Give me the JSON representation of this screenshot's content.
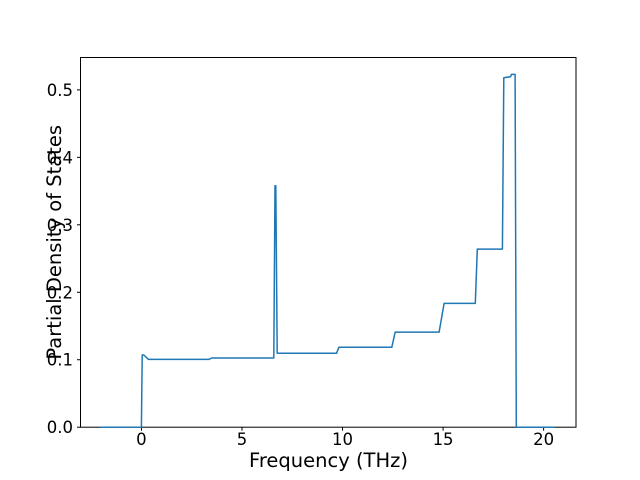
{
  "chart_data": {
    "type": "line",
    "title": "",
    "xlabel": "Frequency (THz)",
    "ylabel": "Partial Density of States",
    "xlim": [
      -3.03,
      21.61
    ],
    "ylim": [
      0.0,
      0.548
    ],
    "xticks": [
      0,
      5,
      10,
      15,
      20
    ],
    "xtick_labels": [
      "0",
      "5",
      "10",
      "15",
      "20"
    ],
    "yticks": [
      0.0,
      0.1,
      0.2,
      0.3,
      0.4,
      0.5
    ],
    "ytick_labels": [
      "0.0",
      "0.1",
      "0.2",
      "0.3",
      "0.4",
      "0.5"
    ],
    "grid": false,
    "legend": "none",
    "background": "#ffffff",
    "line_color": "#1f77b4",
    "line_width": 1.5,
    "series": [
      {
        "name": "partial-dos",
        "points": [
          [
            -2.08,
            0.0
          ],
          [
            0.0,
            0.0
          ],
          [
            0.04,
            0.107
          ],
          [
            0.12,
            0.107
          ],
          [
            0.35,
            0.1005
          ],
          [
            3.35,
            0.1005
          ],
          [
            3.5,
            0.1025
          ],
          [
            6.58,
            0.1025
          ],
          [
            6.64,
            0.358
          ],
          [
            6.68,
            0.358
          ],
          [
            6.75,
            0.1095
          ],
          [
            9.7,
            0.1095
          ],
          [
            9.82,
            0.1185
          ],
          [
            12.45,
            0.1185
          ],
          [
            12.62,
            0.141
          ],
          [
            14.8,
            0.141
          ],
          [
            15.05,
            0.1835
          ],
          [
            16.6,
            0.1835
          ],
          [
            16.7,
            0.264
          ],
          [
            17.95,
            0.264
          ],
          [
            18.02,
            0.518
          ],
          [
            18.36,
            0.5195
          ],
          [
            18.4,
            0.523
          ],
          [
            18.58,
            0.523
          ],
          [
            18.64,
            0.0
          ],
          [
            20.55,
            0.0
          ]
        ]
      }
    ]
  }
}
